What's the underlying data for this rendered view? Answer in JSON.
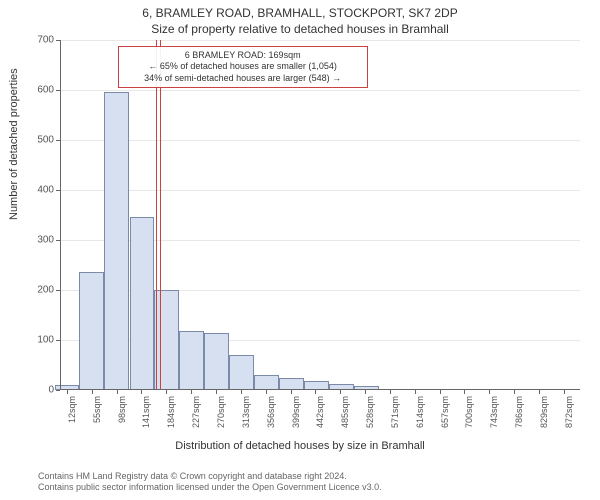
{
  "title_line1": "6, BRAMLEY ROAD, BRAMHALL, STOCKPORT, SK7 2DP",
  "title_line2": "Size of property relative to detached houses in Bramhall",
  "ylabel": "Number of detached properties",
  "xlabel": "Distribution of detached houses by size in Bramhall",
  "footer_line1": "Contains HM Land Registry data © Crown copyright and database right 2024.",
  "footer_line2": "Contains public sector information licensed under the Open Government Licence v3.0.",
  "chart": {
    "type": "histogram",
    "xlim": [
      0,
      900
    ],
    "ylim": [
      0,
      700
    ],
    "ytick_step": 100,
    "xtick_step": 43,
    "xtick_start": 12,
    "xtick_unit": "sqm",
    "xtick_count": 21,
    "background_color": "#ffffff",
    "grid_color": "#e8e8e8",
    "axis_color": "#666666",
    "bar_fill": "#d6e0f0",
    "bar_border": "#7a8aa8",
    "refline_color": "#c94141",
    "text_color": "#333333",
    "label_fontsize": 11,
    "tick_fontsize": 10,
    "title_fontsize": 12,
    "categories_x": [
      12,
      55,
      98,
      142,
      185,
      228,
      271,
      314,
      358,
      401,
      444,
      487,
      530,
      574,
      617,
      660,
      703,
      746,
      790,
      833,
      876
    ],
    "values": [
      10,
      237,
      597,
      347,
      200,
      118,
      115,
      70,
      30,
      25,
      18,
      12,
      8,
      0,
      0,
      0,
      0,
      0,
      0,
      0,
      0
    ],
    "reference_value_x": 169,
    "callout": {
      "line1": "6 BRAMLEY ROAD: 169sqm",
      "line2": "← 65% of detached houses are smaller (1,054)",
      "line3": "34% of semi-detached houses are larger (548) →"
    }
  }
}
